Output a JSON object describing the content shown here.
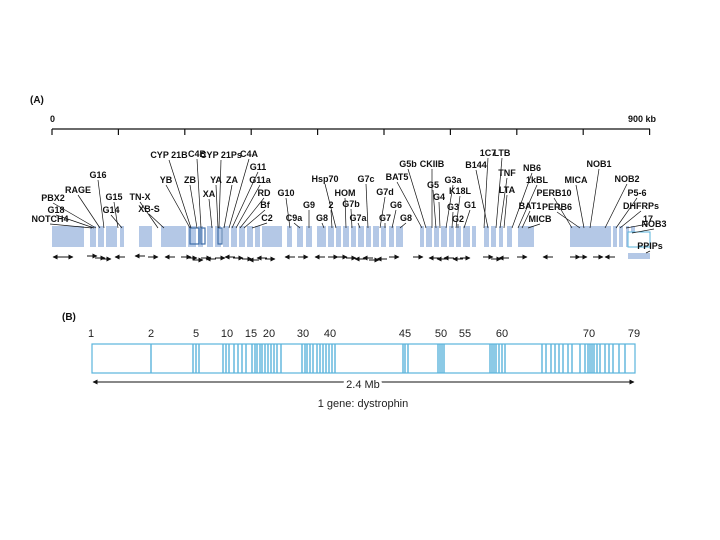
{
  "panel_a": {
    "label": "(A)",
    "axis_start": "0",
    "axis_end": "900 kb",
    "genes": [
      "NOTCH4",
      "G18",
      "PBX2",
      "RAGE",
      "G16",
      "G15",
      "G14",
      "TN-X",
      "XB-S",
      "YB",
      "CYP 21B",
      "ZB",
      "C4B",
      "XA",
      "YA",
      "CYP 21Ps",
      "ZA",
      "C4A",
      "G11",
      "G11a",
      "RD",
      "Bf",
      "C2",
      "G10",
      "C9a",
      "G9",
      "G8",
      "2",
      "Hsp70",
      "HOM",
      "G7b",
      "G7a",
      "G7c",
      "G7d",
      "G7",
      "G6",
      "G8",
      "BAT5",
      "G5b",
      "CKIIB",
      "G5",
      "G4",
      "G3a",
      "G3",
      "K18L",
      "G2",
      "G1",
      "1C7",
      "B144",
      "LTB",
      "TNF",
      "LTA",
      "NB6",
      "1kBL",
      "BAT1",
      "MICB",
      "PERB10",
      "PERB6",
      "MICA",
      "NOB1",
      "NOB2",
      "P5-6",
      "DHFRPs",
      "17",
      "NOB3",
      "PPIPs"
    ]
  },
  "panel_b": {
    "label": "(B)",
    "exon_numbers": [
      "1",
      "2",
      "5",
      "10",
      "15",
      "20",
      "30",
      "40",
      "45",
      "50",
      "55",
      "60",
      "70",
      "79"
    ],
    "span_label": "2.4 Mb",
    "caption": "1 gene: dystrophin"
  },
  "colors": {
    "gene_fill": "#b4c8e6",
    "exon_line": "#5ab4dc",
    "box_stroke": "#5ab4dc",
    "text": "#111111"
  }
}
